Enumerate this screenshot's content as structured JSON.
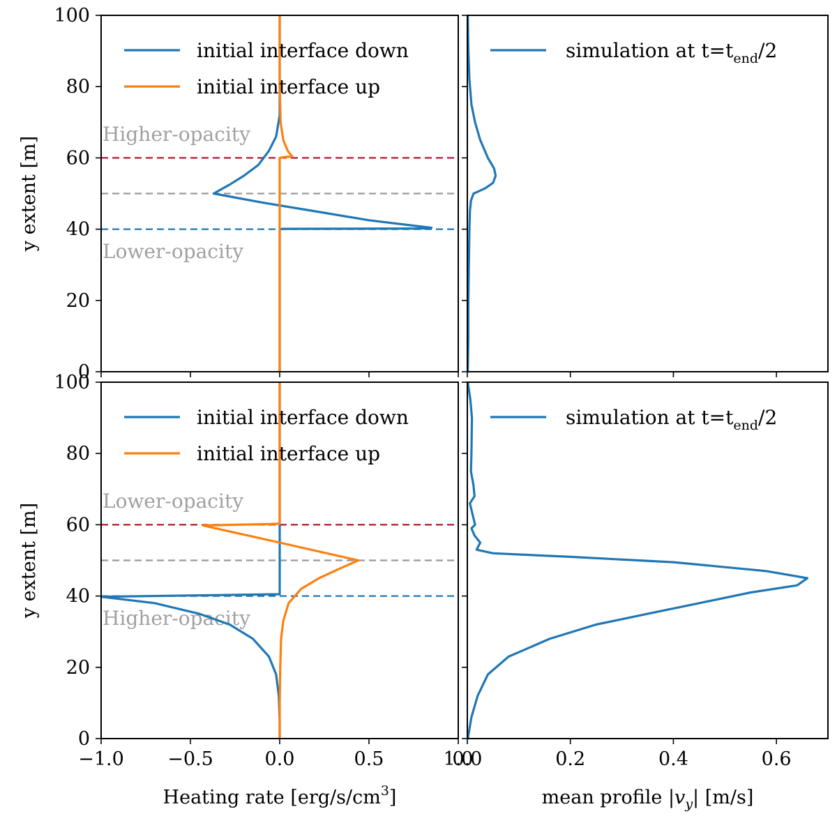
{
  "colors": {
    "blue": "#1f77b4",
    "orange": "#ff7f0e",
    "red_line": "#b2182b",
    "gray_line": "#999999",
    "blue_line": "#4a90c8",
    "region_text": "#a0a0a0"
  },
  "chart_data": [
    {
      "id": "top-left",
      "type": "line",
      "xlabel": "",
      "ylabel": "y extent [m]",
      "xlim": [
        -1.0,
        1.0
      ],
      "ylim": [
        0,
        100
      ],
      "yticks": [
        "0",
        "20",
        "40",
        "60",
        "80",
        "100"
      ],
      "xticks": [],
      "legend": [
        "initial interface down",
        "initial interface up"
      ],
      "annotations": {
        "upper": "Higher-opacity",
        "lower": "Lower-opacity"
      },
      "hlines": [
        {
          "y": 60,
          "color": "red"
        },
        {
          "y": 50,
          "color": "gray"
        },
        {
          "y": 40,
          "color": "blue"
        }
      ],
      "series": [
        {
          "name": "initial interface down",
          "color": "blue",
          "points": [
            [
              0,
              100
            ],
            [
              0,
              80
            ],
            [
              0,
              72
            ],
            [
              -0.02,
              66
            ],
            [
              -0.06,
              62
            ],
            [
              -0.12,
              58
            ],
            [
              -0.2,
              55
            ],
            [
              -0.28,
              52.5
            ],
            [
              -0.37,
              50
            ],
            [
              -0.1,
              47.5
            ],
            [
              0.2,
              45
            ],
            [
              0.5,
              42.5
            ],
            [
              0.85,
              40.4
            ],
            [
              0.8,
              40.2
            ],
            [
              0.02,
              40.1
            ],
            [
              0,
              40
            ],
            [
              0,
              20
            ],
            [
              0,
              0
            ]
          ]
        },
        {
          "name": "initial interface up",
          "color": "orange",
          "points": [
            [
              0,
              100
            ],
            [
              0,
              80
            ],
            [
              0.005,
              70
            ],
            [
              0.02,
              65
            ],
            [
              0.045,
              62
            ],
            [
              0.06,
              61
            ],
            [
              0.07,
              60.4
            ],
            [
              0.02,
              60.2
            ],
            [
              0,
              60
            ],
            [
              0,
              40
            ],
            [
              0,
              0
            ]
          ]
        }
      ]
    },
    {
      "id": "top-right",
      "type": "line",
      "xlabel": "",
      "ylabel": "",
      "xlim": [
        0,
        0.7
      ],
      "ylim": [
        0,
        100
      ],
      "xticks": [],
      "legend": [
        "simulation at t=t",
        "end",
        "/2"
      ],
      "series": [
        {
          "name": "simulation at t=tend/2",
          "color": "blue",
          "points": [
            [
              0.001,
              100
            ],
            [
              0.002,
              90
            ],
            [
              0.004,
              82
            ],
            [
              0.008,
              75
            ],
            [
              0.015,
              70
            ],
            [
              0.025,
              65
            ],
            [
              0.04,
              60
            ],
            [
              0.052,
              57
            ],
            [
              0.055,
              55
            ],
            [
              0.05,
              53
            ],
            [
              0.035,
              51.5
            ],
            [
              0.02,
              50.5
            ],
            [
              0.012,
              50
            ],
            [
              0.01,
              49.2
            ],
            [
              0.007,
              48
            ],
            [
              0.005,
              45
            ],
            [
              0.004,
              40
            ],
            [
              0.003,
              30
            ],
            [
              0.002,
              20
            ],
            [
              0.002,
              10
            ],
            [
              0.001,
              0
            ]
          ]
        }
      ]
    },
    {
      "id": "bottom-left",
      "type": "line",
      "xlabel": "Heating rate [erg/s/cm",
      "xlabel_sup": "3",
      "xlabel_end": "]",
      "ylabel": "y extent [m]",
      "xlim": [
        -1.0,
        1.0
      ],
      "ylim": [
        0,
        100
      ],
      "xticks": [
        "−1.0",
        "−0.5",
        "0.0",
        "0.5",
        "1.0"
      ],
      "yticks": [
        "0",
        "20",
        "40",
        "60",
        "80",
        "100"
      ],
      "legend": [
        "initial interface down",
        "initial interface up"
      ],
      "annotations": {
        "upper": "Lower-opacity",
        "lower": "Higher-opacity"
      },
      "hlines": [
        {
          "y": 60,
          "color": "red"
        },
        {
          "y": 50,
          "color": "gray"
        },
        {
          "y": 40,
          "color": "blue"
        }
      ],
      "series": [
        {
          "name": "initial interface down",
          "color": "blue",
          "points": [
            [
              0,
              100
            ],
            [
              0,
              60
            ],
            [
              0,
              40.5
            ],
            [
              -0.3,
              40.3
            ],
            [
              -1.0,
              39.8
            ],
            [
              -0.7,
              38
            ],
            [
              -0.45,
              35
            ],
            [
              -0.28,
              32
            ],
            [
              -0.15,
              28
            ],
            [
              -0.06,
              23
            ],
            [
              -0.02,
              18
            ],
            [
              -0.005,
              12
            ],
            [
              0,
              5
            ],
            [
              0,
              0
            ]
          ]
        },
        {
          "name": "initial interface up",
          "color": "orange",
          "points": [
            [
              0,
              100
            ],
            [
              0,
              60.3
            ],
            [
              -0.05,
              60.2
            ],
            [
              -0.43,
              59.8
            ],
            [
              0.0,
              55
            ],
            [
              0.44,
              50
            ],
            [
              0.35,
              48
            ],
            [
              0.22,
              45
            ],
            [
              0.12,
              42
            ],
            [
              0.05,
              38
            ],
            [
              0.02,
              33
            ],
            [
              0.008,
              28
            ],
            [
              0.003,
              20
            ],
            [
              0,
              10
            ],
            [
              0,
              0
            ]
          ]
        }
      ]
    },
    {
      "id": "bottom-right",
      "type": "line",
      "xlabel": "mean profile |",
      "xlabel_var": "v",
      "xlabel_sub": "y",
      "xlabel_end": "| [m/s]",
      "ylabel": "",
      "xlim": [
        0,
        0.7
      ],
      "ylim": [
        0,
        100
      ],
      "xticks": [
        "0.0",
        "0.2",
        "0.4",
        "0.6"
      ],
      "legend": [
        "simulation at t=t",
        "end",
        "/2"
      ],
      "series": [
        {
          "name": "simulation at t=tend/2",
          "color": "blue",
          "points": [
            [
              0.001,
              100
            ],
            [
              0.006,
              95
            ],
            [
              0.009,
              90
            ],
            [
              0.008,
              80
            ],
            [
              0.007,
              75
            ],
            [
              0.012,
              71
            ],
            [
              0.014,
              68
            ],
            [
              0.005,
              66
            ],
            [
              0.01,
              63
            ],
            [
              0.015,
              60
            ],
            [
              0.008,
              59
            ],
            [
              0.014,
              57
            ],
            [
              0.025,
              55
            ],
            [
              0.018,
              53
            ],
            [
              0.05,
              52
            ],
            [
              0.2,
              51
            ],
            [
              0.4,
              49.5
            ],
            [
              0.58,
              47
            ],
            [
              0.66,
              45
            ],
            [
              0.64,
              43
            ],
            [
              0.55,
              41
            ],
            [
              0.45,
              38
            ],
            [
              0.35,
              35
            ],
            [
              0.25,
              32
            ],
            [
              0.16,
              28
            ],
            [
              0.08,
              23
            ],
            [
              0.04,
              18
            ],
            [
              0.02,
              12
            ],
            [
              0.008,
              6
            ],
            [
              0.001,
              0
            ]
          ]
        }
      ]
    }
  ]
}
